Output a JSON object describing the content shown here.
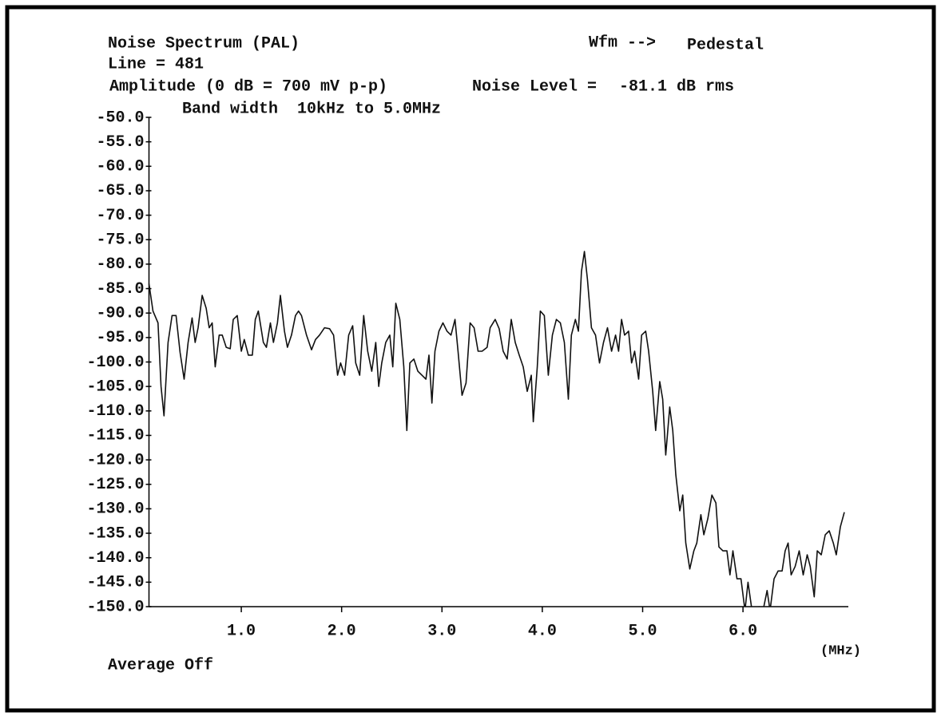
{
  "chart_data": {
    "type": "line",
    "title": "Noise Spectrum (PAL)",
    "annotations": {
      "line": "Line = 481",
      "amplitude": "Amplitude (0 dB = 700 mV p-p)",
      "bandwidth": "Band width  10kHz to 5.0MHz",
      "wfm": "Wfm -->",
      "wfm_value": "Pedestal",
      "noise_level": "Noise Level =",
      "noise_level_value": "-81.1 dB rms",
      "average": "Average Off"
    },
    "x_label": "(MHz)",
    "xlim": [
      0.08,
      7.05
    ],
    "xticks": [
      {
        "value": 1,
        "label": "1.0"
      },
      {
        "value": 2,
        "label": "2.0"
      },
      {
        "value": 3,
        "label": "3.0"
      },
      {
        "value": 4,
        "label": "4.0"
      },
      {
        "value": 5,
        "label": "5.0"
      },
      {
        "value": 6,
        "label": "6.0"
      }
    ],
    "ylim": [
      -150,
      -50
    ],
    "yticks": [
      {
        "value": -50,
        "label": "-50.0"
      },
      {
        "value": -55,
        "label": "-55.0"
      },
      {
        "value": -60,
        "label": "-60.0"
      },
      {
        "value": -65,
        "label": "-65.0"
      },
      {
        "value": -70,
        "label": "-70.0"
      },
      {
        "value": -75,
        "label": "-75.0"
      },
      {
        "value": -80,
        "label": "-80.0"
      },
      {
        "value": -85,
        "label": "-85.0"
      },
      {
        "value": -90,
        "label": "-90.0"
      },
      {
        "value": -95,
        "label": "-95.0"
      },
      {
        "value": -100,
        "label": "-100.0"
      },
      {
        "value": -105,
        "label": "-105.0"
      },
      {
        "value": -110,
        "label": "-110.0"
      },
      {
        "value": -115,
        "label": "-115.0"
      },
      {
        "value": -120,
        "label": "-120.0"
      },
      {
        "value": -125,
        "label": "-125.0"
      },
      {
        "value": -130,
        "label": "-130.0"
      },
      {
        "value": -135,
        "label": "-135.0"
      },
      {
        "value": -140,
        "label": "-140.0"
      },
      {
        "value": -145,
        "label": "-145.0"
      },
      {
        "value": -150,
        "label": "-150.0"
      }
    ],
    "color": "#111111",
    "x": [
      0.08,
      0.12,
      0.17,
      0.2,
      0.23,
      0.27,
      0.31,
      0.35,
      0.39,
      0.43,
      0.47,
      0.51,
      0.54,
      0.57,
      0.61,
      0.65,
      0.68,
      0.71,
      0.74,
      0.78,
      0.81,
      0.85,
      0.89,
      0.92,
      0.96,
      1.0,
      1.03,
      1.07,
      1.11,
      1.14,
      1.17,
      1.22,
      1.25,
      1.29,
      1.32,
      1.36,
      1.39,
      1.43,
      1.46,
      1.5,
      1.54,
      1.57,
      1.6,
      1.65,
      1.7,
      1.74,
      1.78,
      1.83,
      1.88,
      1.92,
      1.96,
      1.99,
      2.03,
      2.07,
      2.11,
      2.14,
      2.18,
      2.22,
      2.26,
      2.3,
      2.34,
      2.37,
      2.4,
      2.44,
      2.48,
      2.51,
      2.54,
      2.58,
      2.62,
      2.65,
      2.68,
      2.72,
      2.76,
      2.8,
      2.84,
      2.87,
      2.9,
      2.93,
      2.97,
      3.01,
      3.05,
      3.09,
      3.13,
      3.16,
      3.2,
      3.24,
      3.28,
      3.32,
      3.36,
      3.4,
      3.45,
      3.48,
      3.53,
      3.57,
      3.61,
      3.65,
      3.69,
      3.73,
      3.77,
      3.81,
      3.85,
      3.89,
      3.91,
      3.95,
      3.98,
      4.02,
      4.06,
      4.1,
      4.14,
      4.18,
      4.22,
      4.26,
      4.29,
      4.33,
      4.36,
      4.39,
      4.42,
      4.45,
      4.49,
      4.53,
      4.57,
      4.61,
      4.65,
      4.69,
      4.73,
      4.76,
      4.79,
      4.82,
      4.86,
      4.89,
      4.92,
      4.96,
      4.99,
      5.03,
      5.06,
      5.1,
      5.13,
      5.17,
      5.2,
      5.23,
      5.27,
      5.3,
      5.33,
      5.37,
      5.4,
      5.43,
      5.47,
      5.51,
      5.54,
      5.58,
      5.61,
      5.65,
      5.69,
      5.73,
      5.76,
      5.8,
      5.84,
      5.87,
      5.9,
      5.94,
      5.98,
      6.02,
      6.05,
      6.09,
      6.13,
      6.16,
      6.2,
      6.24,
      6.27,
      6.31,
      6.35,
      6.39,
      6.42,
      6.45,
      6.48,
      6.52,
      6.56,
      6.6,
      6.64,
      6.67,
      6.71,
      6.74,
      6.78,
      6.82,
      6.86,
      6.9,
      6.93,
      6.97,
      7.01
    ],
    "values": [
      -84,
      -89.6,
      -92,
      -105,
      -111,
      -96,
      -90.5,
      -90.5,
      -98,
      -103.5,
      -96,
      -91,
      -96,
      -93,
      -86.4,
      -89,
      -93,
      -92,
      -101,
      -94.5,
      -94.5,
      -97,
      -97.3,
      -91.3,
      -90.5,
      -97.8,
      -95.4,
      -98.6,
      -98.6,
      -91.3,
      -89.6,
      -96,
      -97,
      -92,
      -96,
      -92,
      -86.4,
      -93.7,
      -97,
      -94.5,
      -90.5,
      -89.6,
      -90.5,
      -94.5,
      -97.5,
      -95.4,
      -94.5,
      -93,
      -93.2,
      -94.5,
      -102.7,
      -100.2,
      -102.7,
      -94.5,
      -92.6,
      -100.2,
      -102.7,
      -90.5,
      -97.8,
      -101.9,
      -96,
      -105,
      -100.2,
      -96,
      -94.5,
      -101,
      -88,
      -91.3,
      -101,
      -114,
      -100.2,
      -99.4,
      -101.9,
      -102.7,
      -103.5,
      -98.6,
      -108.4,
      -97.8,
      -93.7,
      -92,
      -93.7,
      -94.5,
      -91.3,
      -97.8,
      -106.8,
      -104.3,
      -92,
      -93,
      -97.8,
      -97.8,
      -97,
      -93,
      -91.3,
      -93.2,
      -97.8,
      -99.4,
      -91.3,
      -96,
      -98.6,
      -101,
      -106,
      -102.7,
      -112.2,
      -101,
      -89.6,
      -90.5,
      -102.7,
      -94.5,
      -91.3,
      -92,
      -96,
      -107.6,
      -94.5,
      -91.3,
      -93.7,
      -81.5,
      -77.4,
      -83.1,
      -93,
      -94.5,
      -100.2,
      -96,
      -93,
      -97.8,
      -94.5,
      -97.8,
      -91.3,
      -94.5,
      -93.7,
      -100.2,
      -97.8,
      -103.5,
      -94.5,
      -93.7,
      -97.8,
      -106,
      -114,
      -104,
      -107.6,
      -119,
      -109.2,
      -114,
      -123,
      -130.4,
      -127.2,
      -137,
      -142.3,
      -138.6,
      -137,
      -131.2,
      -135.3,
      -132,
      -127.2,
      -128.8,
      -137.8,
      -138.6,
      -138.6,
      -143.5,
      -138.6,
      -144.3,
      -144.3,
      -150.8,
      -145,
      -150.8,
      -150.8,
      -150,
      -150.8,
      -146.7,
      -150.8,
      -144.3,
      -142.7,
      -142.7,
      -138.6,
      -137,
      -143.5,
      -141.8,
      -138.6,
      -143.5,
      -139.4,
      -141.8,
      -148,
      -138.6,
      -139.4,
      -135.3,
      -134.5,
      -137,
      -139.4,
      -133.7,
      -130.7
    ]
  }
}
